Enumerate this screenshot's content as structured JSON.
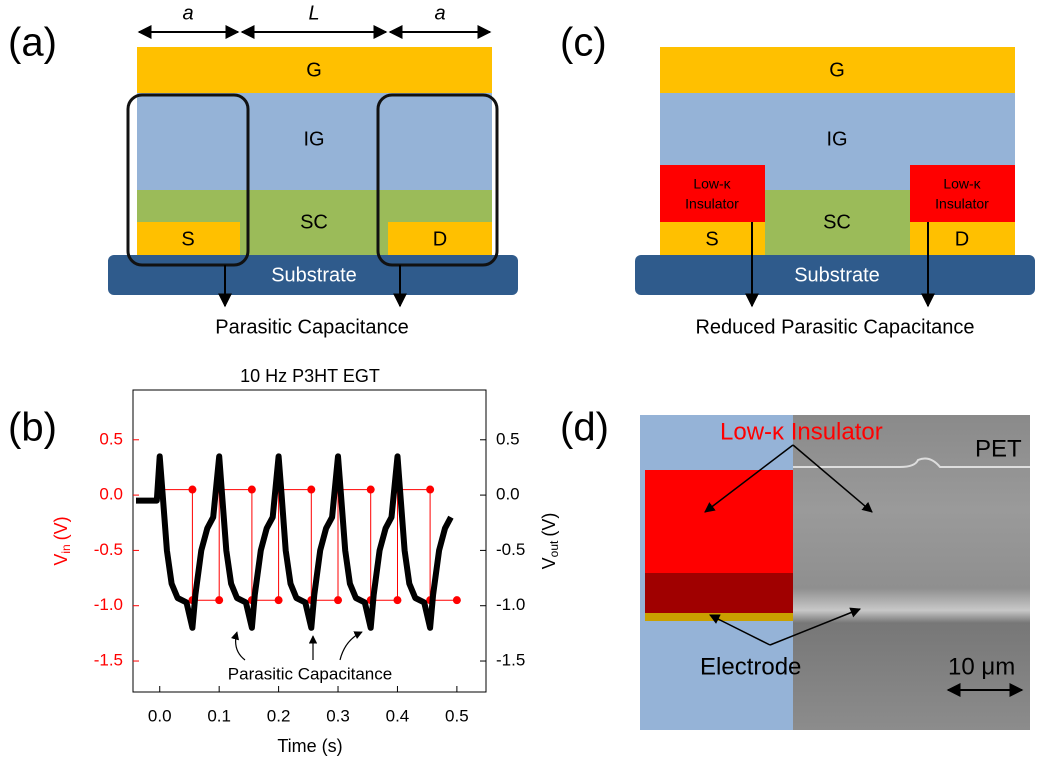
{
  "panel_a": {
    "label": "(a)",
    "dim_left": "a",
    "dim_mid": "L",
    "dim_right": "a",
    "gate": "G",
    "insulator": "IG",
    "semiconductor": "SC",
    "source": "S",
    "drain": "D",
    "substrate": "Substrate",
    "caption": "Parasitic Capacitance"
  },
  "panel_c": {
    "label": "(c)",
    "gate": "G",
    "insulator": "IG",
    "low_k_line1": "Low-κ",
    "low_k_line2": "Insulator",
    "semiconductor": "SC",
    "source": "S",
    "drain": "D",
    "substrate": "Substrate",
    "caption": "Reduced Parasitic Capacitance"
  },
  "panel_b_label": "(b)",
  "panel_d": {
    "label": "(d)",
    "low_k": "Low-κ Insulator",
    "pet": "PET",
    "electrode": "Electrode",
    "scale": "10 μm"
  },
  "chart_data": {
    "type": "line",
    "title": "10 Hz P3HT EGT",
    "xlabel": "Time (s)",
    "ylabel": {
      "symbol": "V",
      "sub": "in",
      "unit": "(V)"
    },
    "y2label": {
      "symbol": "V",
      "sub": "out",
      "unit": "(V)"
    },
    "annotation": "Parasitic Capacitance",
    "xlim": [
      -0.045,
      0.549
    ],
    "xticks": [
      {
        "value": 0,
        "label": "0.0"
      },
      0.1,
      0.2,
      0.3,
      0.4,
      0.5
    ],
    "ylim": [
      -1.78,
      0.95
    ],
    "yticks": [
      -1.5,
      {
        "value": -1,
        "label": "-1.0"
      },
      -0.5,
      {
        "value": 0,
        "label": "0.0"
      },
      0.5
    ],
    "y2lim": [
      -1.78,
      0.95
    ],
    "y2ticks": [
      -1.5,
      {
        "value": -1,
        "label": "-1.0"
      },
      -0.5,
      {
        "value": 0,
        "label": "0.0"
      },
      0.5
    ],
    "series": [
      {
        "color": "#ff0000",
        "x": [
          0,
          0.055,
          0.055,
          0.1,
          0.1,
          0.155,
          0.155,
          0.2,
          0.2,
          0.255,
          0.255,
          0.3,
          0.3,
          0.355,
          0.355,
          0.4,
          0.4,
          0.455,
          0.455,
          0.5
        ],
        "values": [
          0.05,
          0.05,
          -0.95,
          -0.95,
          0.05,
          0.05,
          -0.95,
          -0.95,
          0.05,
          0.05,
          -0.95,
          -0.95,
          0.05,
          0.05,
          -0.95,
          -0.95,
          0.05,
          0.05,
          -0.95,
          -0.95
        ]
      },
      {
        "color": "#000000",
        "axis": "y2",
        "x": [
          -0.04,
          -0.005,
          0,
          0.005,
          0.012,
          0.02,
          0.03,
          0.045,
          0.055,
          0.06,
          0.07,
          0.08,
          0.09,
          0.1,
          0.105,
          0.112,
          0.12,
          0.13,
          0.145,
          0.155,
          0.16,
          0.17,
          0.18,
          0.19,
          0.2,
          0.205,
          0.212,
          0.22,
          0.23,
          0.245,
          0.255,
          0.26,
          0.27,
          0.28,
          0.29,
          0.3,
          0.305,
          0.312,
          0.32,
          0.33,
          0.345,
          0.355,
          0.36,
          0.37,
          0.38,
          0.39,
          0.4,
          0.405,
          0.412,
          0.42,
          0.43,
          0.445,
          0.455,
          0.46,
          0.47,
          0.48,
          0.49
        ],
        "values": [
          -0.05,
          -0.05,
          0.35,
          0.0,
          -0.5,
          -0.8,
          -0.93,
          -0.97,
          -1.2,
          -0.9,
          -0.5,
          -0.3,
          -0.2,
          0.35,
          0.0,
          -0.5,
          -0.8,
          -0.93,
          -0.97,
          -1.2,
          -0.9,
          -0.5,
          -0.3,
          -0.2,
          0.35,
          0.0,
          -0.5,
          -0.8,
          -0.93,
          -0.97,
          -1.2,
          -0.9,
          -0.5,
          -0.3,
          -0.2,
          0.35,
          0.0,
          -0.5,
          -0.8,
          -0.93,
          -0.97,
          -1.2,
          -0.9,
          -0.5,
          -0.3,
          -0.2,
          0.35,
          0.0,
          -0.5,
          -0.8,
          -0.93,
          -0.97,
          -1.2,
          -0.9,
          -0.5,
          -0.3,
          -0.2
        ]
      }
    ]
  }
}
